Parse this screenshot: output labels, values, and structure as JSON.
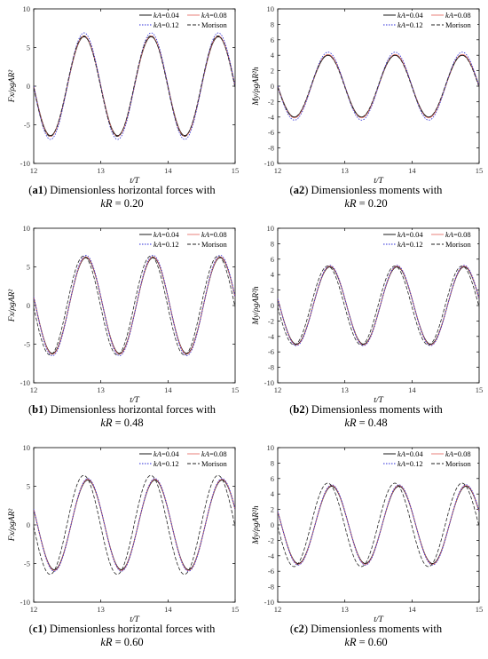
{
  "series_styles": [
    {
      "name": "kA=0.04",
      "color": "#000000",
      "dash": ""
    },
    {
      "name": "kA=0.08",
      "color": "#e8736d",
      "dash": ""
    },
    {
      "name": "kA=0.12",
      "color": "#2a2ad8",
      "dash": "1.5,1.5"
    },
    {
      "name": "Morison",
      "color": "#222222",
      "dash": "4,2"
    }
  ],
  "legend_labels": [
    {
      "italic": "kA",
      "rest": "=0.04"
    },
    {
      "italic": "kA",
      "rest": "=0.08"
    },
    {
      "italic": "kA",
      "rest": "=0.12"
    },
    {
      "italic": "",
      "rest": "Morison"
    }
  ],
  "panels": [
    {
      "id": "a1",
      "caption_id": "a1",
      "caption_text": "Dimensionless horizontal forces with",
      "caption_kr": "kR = 0.20"
    },
    {
      "id": "a2",
      "caption_id": "a2",
      "caption_text": "Dimensionless moments with",
      "caption_kr": "kR = 0.20"
    },
    {
      "id": "b1",
      "caption_id": "b1",
      "caption_text": "Dimensionless horizontal forces with",
      "caption_kr": "kR = 0.48"
    },
    {
      "id": "b2",
      "caption_id": "b2",
      "caption_text": "Dimensionless moments with",
      "caption_kr": "kR = 0.48"
    },
    {
      "id": "c1",
      "caption_id": "c1",
      "caption_text": "Dimensionless horizontal forces with",
      "caption_kr": "kR = 0.60"
    },
    {
      "id": "c2",
      "caption_id": "c2",
      "caption_text": "Dimensionless moments with",
      "caption_kr": "kR = 0.60"
    }
  ],
  "chart_data": [
    {
      "type": "line",
      "xlabel": "t/T",
      "ylabel": "Fx/ρgAR²",
      "xlim": [
        12,
        15
      ],
      "ylim": [
        -10,
        10
      ],
      "xticks": [
        12,
        13,
        14,
        15
      ],
      "yticks": [
        -10,
        -5,
        0,
        5,
        10
      ],
      "legend_position": "top-right",
      "grid": false,
      "series": [
        {
          "name": "kA=0.04",
          "amplitude": 6.4,
          "phase_deg": 0,
          "period": 1
        },
        {
          "name": "kA=0.08",
          "amplitude": 6.5,
          "phase_deg": 0,
          "period": 1
        },
        {
          "name": "kA=0.12",
          "amplitude": 6.9,
          "phase_deg": 0,
          "period": 1
        },
        {
          "name": "Morison",
          "amplitude": 6.5,
          "phase_deg": 2,
          "period": 1
        }
      ]
    },
    {
      "type": "line",
      "xlabel": "t/T",
      "ylabel": "My/ρgAR²h",
      "xlim": [
        12,
        15
      ],
      "ylim": [
        -10,
        10
      ],
      "xticks": [
        12,
        13,
        14,
        15
      ],
      "yticks": [
        -10,
        -8,
        -6,
        -4,
        -2,
        0,
        2,
        4,
        6,
        8,
        10
      ],
      "legend_position": "top-right",
      "grid": false,
      "series": [
        {
          "name": "kA=0.04",
          "amplitude": 4.0,
          "phase_deg": 0,
          "period": 1
        },
        {
          "name": "kA=0.08",
          "amplitude": 4.1,
          "phase_deg": 0,
          "period": 1
        },
        {
          "name": "kA=0.12",
          "amplitude": 4.4,
          "phase_deg": 0,
          "period": 1
        },
        {
          "name": "Morison",
          "amplitude": 4.0,
          "phase_deg": 2,
          "period": 1
        }
      ]
    },
    {
      "type": "line",
      "xlabel": "t/T",
      "ylabel": "Fx/ρgAR²",
      "xlim": [
        12,
        15
      ],
      "ylim": [
        -10,
        10
      ],
      "xticks": [
        12,
        13,
        14,
        15
      ],
      "yticks": [
        -10,
        -5,
        0,
        5,
        10
      ],
      "legend_position": "top-right",
      "grid": false,
      "series": [
        {
          "name": "kA=0.04",
          "amplitude": 6.2,
          "phase_deg": -10,
          "period": 1
        },
        {
          "name": "kA=0.08",
          "amplitude": 6.3,
          "phase_deg": -10,
          "period": 1
        },
        {
          "name": "kA=0.12",
          "amplitude": 6.5,
          "phase_deg": -10,
          "period": 1
        },
        {
          "name": "Morison",
          "amplitude": 6.4,
          "phase_deg": 2,
          "period": 1
        }
      ]
    },
    {
      "type": "line",
      "xlabel": "t/T",
      "ylabel": "My/ρgAR²h",
      "xlim": [
        12,
        15
      ],
      "ylim": [
        -10,
        10
      ],
      "xticks": [
        12,
        13,
        14,
        15
      ],
      "yticks": [
        -10,
        -8,
        -6,
        -4,
        -2,
        0,
        2,
        4,
        6,
        8,
        10
      ],
      "legend_position": "top-right",
      "grid": false,
      "series": [
        {
          "name": "kA=0.04",
          "amplitude": 5.0,
          "phase_deg": -10,
          "period": 1
        },
        {
          "name": "kA=0.08",
          "amplitude": 5.1,
          "phase_deg": -10,
          "period": 1
        },
        {
          "name": "kA=0.12",
          "amplitude": 5.2,
          "phase_deg": -10,
          "period": 1
        },
        {
          "name": "Morison",
          "amplitude": 5.1,
          "phase_deg": 2,
          "period": 1
        }
      ]
    },
    {
      "type": "line",
      "xlabel": "t/T",
      "ylabel": "Fx/ρgAR²",
      "xlim": [
        12,
        15
      ],
      "ylim": [
        -10,
        10
      ],
      "xticks": [
        12,
        13,
        14,
        15
      ],
      "yticks": [
        -10,
        -5,
        0,
        5,
        10
      ],
      "legend_position": "top-right",
      "grid": false,
      "series": [
        {
          "name": "kA=0.04",
          "amplitude": 5.8,
          "phase_deg": -20,
          "period": 1
        },
        {
          "name": "kA=0.08",
          "amplitude": 5.9,
          "phase_deg": -20,
          "period": 1
        },
        {
          "name": "kA=0.12",
          "amplitude": 6.0,
          "phase_deg": -20,
          "period": 1
        },
        {
          "name": "Morison",
          "amplitude": 6.4,
          "phase_deg": 2,
          "period": 1
        }
      ]
    },
    {
      "type": "line",
      "xlabel": "t/T",
      "ylabel": "My/ρgAR²h",
      "xlim": [
        12,
        15
      ],
      "ylim": [
        -10,
        10
      ],
      "xticks": [
        12,
        13,
        14,
        15
      ],
      "yticks": [
        -10,
        -8,
        -6,
        -4,
        -2,
        0,
        2,
        4,
        6,
        8,
        10
      ],
      "legend_position": "top-right",
      "grid": false,
      "series": [
        {
          "name": "kA=0.04",
          "amplitude": 5.0,
          "phase_deg": -20,
          "period": 1
        },
        {
          "name": "kA=0.08",
          "amplitude": 5.1,
          "phase_deg": -20,
          "period": 1
        },
        {
          "name": "kA=0.12",
          "amplitude": 5.2,
          "phase_deg": -20,
          "period": 1
        },
        {
          "name": "Morison",
          "amplitude": 5.4,
          "phase_deg": 2,
          "period": 1
        }
      ]
    }
  ]
}
